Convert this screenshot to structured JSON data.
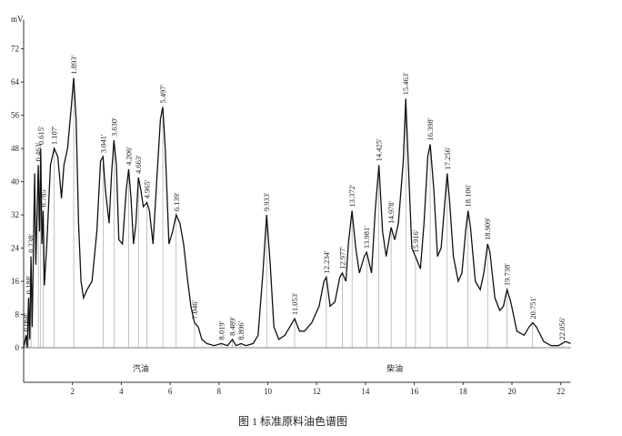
{
  "chart_data": {
    "type": "line",
    "title": "图 1   标准原料油色谱图",
    "y_label": "mV",
    "xlim": [
      0,
      22.4
    ],
    "ylim": [
      0,
      79
    ],
    "xticks": [
      2,
      4,
      6,
      8,
      10,
      12,
      14,
      16,
      18,
      20,
      22
    ],
    "yticks": [
      0,
      8,
      16,
      24,
      32,
      40,
      48,
      56,
      64,
      72
    ],
    "x": [
      0.0,
      0.1,
      0.15,
      0.2,
      0.25,
      0.3,
      0.35,
      0.45,
      0.5,
      0.6,
      0.65,
      0.7,
      0.75,
      0.8,
      0.85,
      0.95,
      1.1,
      1.25,
      1.4,
      1.55,
      1.65,
      1.8,
      1.95,
      2.05,
      2.15,
      2.25,
      2.35,
      2.45,
      2.6,
      2.8,
      3.0,
      3.15,
      3.25,
      3.35,
      3.5,
      3.6,
      3.7,
      3.8,
      3.9,
      4.05,
      4.2,
      4.3,
      4.4,
      4.5,
      4.6,
      4.7,
      4.8,
      4.9,
      5.05,
      5.15,
      5.3,
      5.45,
      5.6,
      5.7,
      5.8,
      5.95,
      6.1,
      6.25,
      6.4,
      6.55,
      6.7,
      6.85,
      7.0,
      7.15,
      7.3,
      7.5,
      7.8,
      8.1,
      8.35,
      8.55,
      8.7,
      8.9,
      9.1,
      9.4,
      9.6,
      9.8,
      9.95,
      10.1,
      10.25,
      10.45,
      10.7,
      10.9,
      11.1,
      11.3,
      11.5,
      11.8,
      12.1,
      12.3,
      12.4,
      12.55,
      12.75,
      12.95,
      13.05,
      13.2,
      13.3,
      13.45,
      13.6,
      13.75,
      13.95,
      14.05,
      14.25,
      14.4,
      14.55,
      14.7,
      14.85,
      15.05,
      15.2,
      15.35,
      15.55,
      15.65,
      15.75,
      15.9,
      16.05,
      16.25,
      16.4,
      16.55,
      16.65,
      16.8,
      16.95,
      17.1,
      17.25,
      17.35,
      17.45,
      17.6,
      17.8,
      17.95,
      18.1,
      18.2,
      18.3,
      18.5,
      18.7,
      18.85,
      19.0,
      19.1,
      19.3,
      19.5,
      19.65,
      19.8,
      19.95,
      20.2,
      20.5,
      20.7,
      20.85,
      21.0,
      21.3,
      21.6,
      21.9,
      22.05,
      22.2,
      22.4
    ],
    "series": [
      {
        "color": "#111111",
        "values": [
          0,
          3,
          0,
          12,
          2,
          22,
          5,
          42,
          20,
          44,
          28,
          48,
          25,
          33,
          15,
          25,
          44,
          48,
          46,
          36,
          44,
          48,
          58,
          65,
          55,
          30,
          16,
          12,
          14,
          16,
          28,
          45,
          46,
          38,
          30,
          42,
          50,
          44,
          26,
          25,
          38,
          43,
          36,
          25,
          30,
          41,
          38,
          34,
          35,
          33,
          25,
          40,
          55,
          58,
          48,
          25,
          28,
          32,
          30,
          25,
          17,
          10,
          6,
          5,
          2,
          1,
          0.5,
          1,
          0.5,
          2,
          0.5,
          1,
          0.5,
          1,
          3,
          18,
          32,
          20,
          5,
          2,
          3,
          5,
          7,
          4,
          4,
          6,
          10,
          16,
          17,
          10,
          11,
          17,
          18,
          16,
          25,
          33,
          24,
          18,
          22,
          23,
          18,
          33,
          44,
          28,
          22,
          29,
          26,
          30,
          45,
          60,
          45,
          24,
          22,
          19,
          30,
          46,
          49,
          38,
          22,
          24,
          35,
          42,
          35,
          22,
          16,
          18,
          28,
          33,
          29,
          16,
          14,
          18,
          25,
          23,
          12,
          9,
          10,
          14,
          11,
          4,
          3,
          5,
          6,
          5,
          1.5,
          0.5,
          0.5,
          1,
          1.5,
          1
        ]
      }
    ],
    "annotations": [
      {
        "text": "0.068'",
        "x": 0.1,
        "y": 3
      },
      {
        "text": "0.188'",
        "x": 0.2,
        "y": 12
      },
      {
        "text": "0.238'",
        "x": 0.3,
        "y": 22
      },
      {
        "text": "0.463'",
        "x": 0.6,
        "y": 44
      },
      {
        "text": "0.615'",
        "x": 0.7,
        "y": 48
      },
      {
        "text": "0.785'",
        "x": 0.8,
        "y": 33
      },
      {
        "text": "1.107'",
        "x": 1.25,
        "y": 48
      },
      {
        "text": "1.893'",
        "x": 2.05,
        "y": 65
      },
      {
        "text": "3.041'",
        "x": 3.25,
        "y": 46
      },
      {
        "text": "3.630'",
        "x": 3.7,
        "y": 50
      },
      {
        "text": "4.206'",
        "x": 4.3,
        "y": 43
      },
      {
        "text": "4.663'",
        "x": 4.7,
        "y": 41
      },
      {
        "text": "4.965'",
        "x": 5.05,
        "y": 35
      },
      {
        "text": "5.497'",
        "x": 5.7,
        "y": 58
      },
      {
        "text": "6.139'",
        "x": 6.25,
        "y": 32
      },
      {
        "text": "7.046'",
        "x": 7.0,
        "y": 6
      },
      {
        "text": "8.019'",
        "x": 8.1,
        "y": 1
      },
      {
        "text": "8.489'",
        "x": 8.55,
        "y": 2
      },
      {
        "text": "8.896'",
        "x": 8.9,
        "y": 1
      },
      {
        "text": "9.933'",
        "x": 9.95,
        "y": 32
      },
      {
        "text": "11.053'",
        "x": 11.1,
        "y": 7
      },
      {
        "text": "12.234'",
        "x": 12.4,
        "y": 17
      },
      {
        "text": "12.977'",
        "x": 13.05,
        "y": 18
      },
      {
        "text": "13.372'",
        "x": 13.45,
        "y": 33
      },
      {
        "text": "13.981'",
        "x": 14.05,
        "y": 23
      },
      {
        "text": "14.425'",
        "x": 14.55,
        "y": 44
      },
      {
        "text": "14.978'",
        "x": 15.05,
        "y": 29
      },
      {
        "text": "15.463'",
        "x": 15.65,
        "y": 60
      },
      {
        "text": "15.916'",
        "x": 16.05,
        "y": 22
      },
      {
        "text": "16.398'",
        "x": 16.65,
        "y": 49
      },
      {
        "text": "17.256'",
        "x": 17.35,
        "y": 42
      },
      {
        "text": "18.106'",
        "x": 18.2,
        "y": 33
      },
      {
        "text": "18.909'",
        "x": 19.0,
        "y": 25
      },
      {
        "text": "19.738'",
        "x": 19.8,
        "y": 14
      },
      {
        "text": "20.751'",
        "x": 20.85,
        "y": 6
      },
      {
        "text": "22.056'",
        "x": 22.05,
        "y": 1
      }
    ],
    "regions": [
      {
        "text": "汽油",
        "x": 4.8
      },
      {
        "text": "柴油",
        "x": 15.2
      }
    ]
  }
}
